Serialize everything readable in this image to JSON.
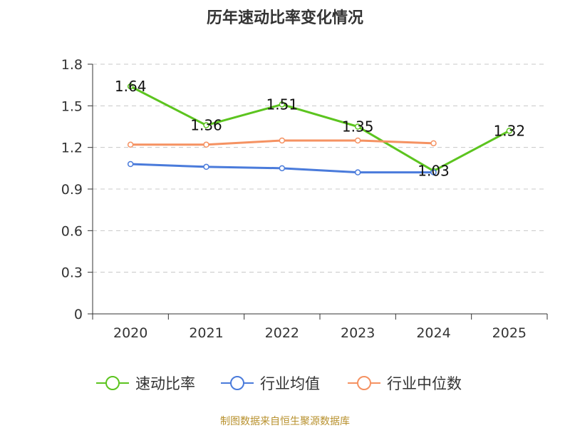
{
  "chart_data": {
    "type": "line",
    "title": "历年速动比率变化情况",
    "categories": [
      "2020",
      "2021",
      "2022",
      "2023",
      "2024",
      "2025"
    ],
    "ylim": [
      0,
      1.8
    ],
    "yticks": [
      "0",
      "0.3",
      "0.6",
      "0.9",
      "1.2",
      "1.5",
      "1.8"
    ],
    "grid": true,
    "legend_position": "bottom",
    "series": [
      {
        "name": "速动比率",
        "color": "#5cc41f",
        "values": [
          1.64,
          1.36,
          1.51,
          1.35,
          1.03,
          1.32
        ],
        "labels": [
          "1.64",
          "1.36",
          "1.51",
          "1.35",
          "1.03",
          "1.32"
        ]
      },
      {
        "name": "行业均值",
        "color": "#4a7bdb",
        "values": [
          1.08,
          1.06,
          1.05,
          1.02,
          1.02,
          null
        ]
      },
      {
        "name": "行业中位数",
        "color": "#f59262",
        "values": [
          1.22,
          1.22,
          1.25,
          1.25,
          1.23,
          null
        ]
      }
    ],
    "source": "制图数据来自恒生聚源数据库"
  }
}
